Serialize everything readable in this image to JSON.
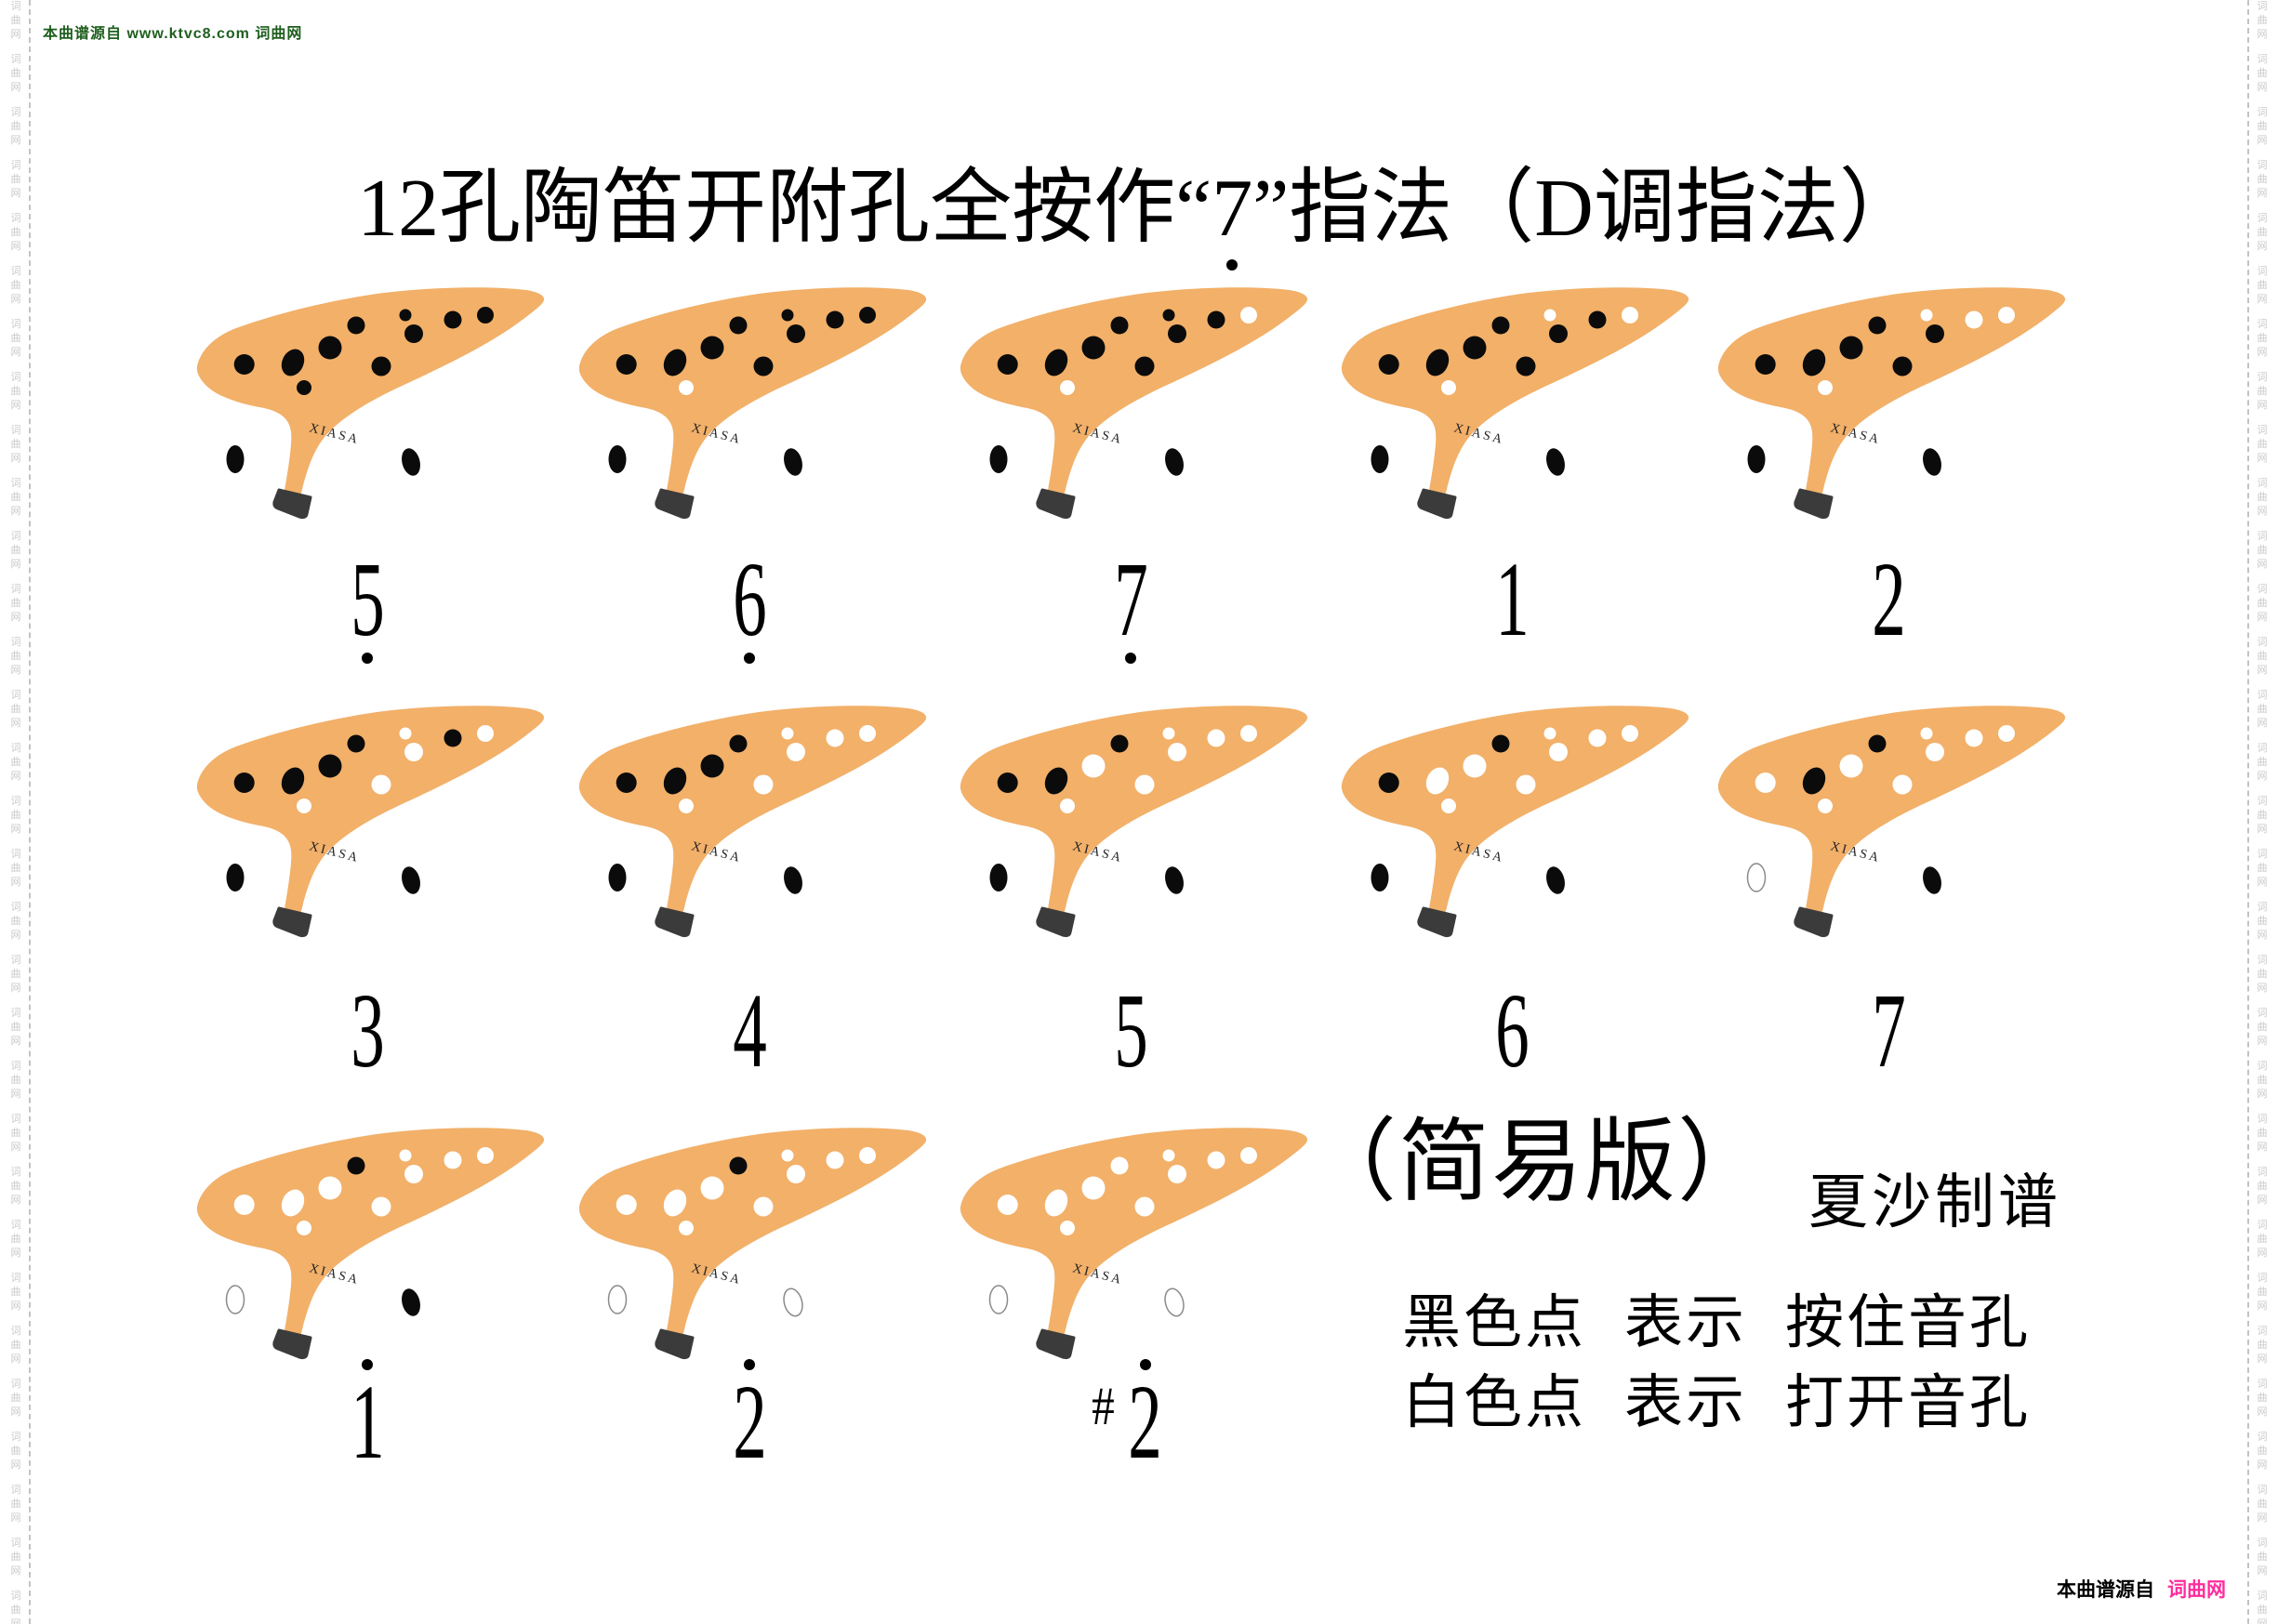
{
  "credits": {
    "top_left": "本曲谱源自 www.ktvc8.com 词曲网",
    "bottom_prefix": "本曲谱源自",
    "bottom_brand": "词曲网",
    "side_vertical_text": "词曲网"
  },
  "title": {
    "prefix": "12孔陶笛开附孔全按作“",
    "note": "7",
    "note_octave": "low",
    "suffix": "”指法（D调指法）"
  },
  "ocarina": {
    "brand": "XIASA",
    "body_color": "#F2B069",
    "mouthpiece_color": "#3B3B3B",
    "closed_hole_color": "#0B0B0B",
    "open_hole_color": "#FFFFFF",
    "open_thumb_outline": "#8A8A8A"
  },
  "legend": {
    "edition": "（简易版）",
    "author": "夏沙制谱",
    "black_dot_line": "黑色点  表示  按住音孔",
    "white_dot_line": "白色点  表示  打开音孔"
  },
  "colors": {
    "top_credit_green": "#1E5E1E",
    "bottom_brand_pink": "#FF2C9C",
    "watermark_gray": "#C9C9C9",
    "text_black": "#000000"
  },
  "fingerings": [
    {
      "label": "5",
      "octave": "low",
      "accidental": "",
      "open_holes": []
    },
    {
      "label": "6",
      "octave": "low",
      "accidental": "",
      "open_holes": [
        "C"
      ]
    },
    {
      "label": "7",
      "octave": "low",
      "accidental": "",
      "open_holes": [
        "C",
        "J"
      ]
    },
    {
      "label": "1",
      "octave": "middle",
      "accidental": "",
      "open_holes": [
        "C",
        "G",
        "J"
      ]
    },
    {
      "label": "2",
      "octave": "middle",
      "accidental": "",
      "open_holes": [
        "C",
        "G",
        "I",
        "J"
      ]
    },
    {
      "label": "3",
      "octave": "middle",
      "accidental": "",
      "open_holes": [
        "C",
        "F",
        "G",
        "H",
        "J"
      ]
    },
    {
      "label": "4",
      "octave": "middle",
      "accidental": "",
      "open_holes": [
        "C",
        "F",
        "G",
        "H",
        "I",
        "J"
      ]
    },
    {
      "label": "5",
      "octave": "middle",
      "accidental": "",
      "open_holes": [
        "C",
        "D",
        "F",
        "G",
        "H",
        "I",
        "J"
      ]
    },
    {
      "label": "6",
      "octave": "middle",
      "accidental": "",
      "open_holes": [
        "B",
        "C",
        "D",
        "F",
        "G",
        "H",
        "I",
        "J"
      ]
    },
    {
      "label": "7",
      "octave": "middle",
      "accidental": "",
      "open_holes": [
        "A",
        "C",
        "D",
        "F",
        "G",
        "H",
        "I",
        "J",
        "K"
      ]
    },
    {
      "label": "1",
      "octave": "high",
      "accidental": "",
      "open_holes": [
        "A",
        "B",
        "C",
        "D",
        "F",
        "G",
        "H",
        "I",
        "J",
        "K"
      ]
    },
    {
      "label": "2",
      "octave": "high",
      "accidental": "",
      "open_holes": [
        "A",
        "B",
        "C",
        "D",
        "F",
        "G",
        "H",
        "I",
        "J",
        "K",
        "L"
      ]
    },
    {
      "label": "2",
      "octave": "high",
      "accidental": "#",
      "open_holes": [
        "A",
        "B",
        "C",
        "D",
        "E",
        "F",
        "G",
        "H",
        "I",
        "J",
        "K",
        "L"
      ]
    }
  ]
}
